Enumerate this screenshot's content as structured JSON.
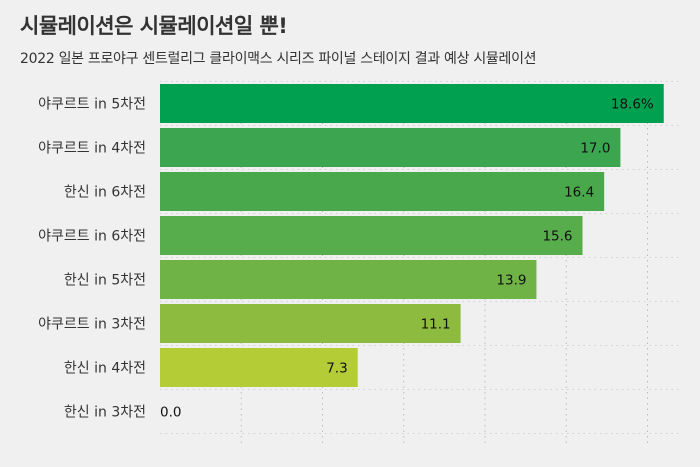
{
  "title": "시뮬레이션은 시뮬레이션일 뿐!",
  "subtitle": "2022 일본 프로야구 센트럴리그 클라이맥스 시리즈 파이널 스테이지 결과 예상 시뮬레이션",
  "chart_data": {
    "type": "bar",
    "orientation": "horizontal",
    "categories": [
      "야쿠르트 in 5차전",
      "야쿠르트 in 4차전",
      "한신 in 6차전",
      "야쿠르트 in 6차전",
      "한신 in 5차전",
      "야쿠르트 in 3차전",
      "한신 in 4차전",
      "한신 in 3차전"
    ],
    "values": [
      18.6,
      17.0,
      16.4,
      15.6,
      13.9,
      11.1,
      7.3,
      0.0
    ],
    "value_labels": [
      "18.6%",
      "17.0",
      "16.4",
      "15.6",
      "13.9",
      "11.1",
      "7.3",
      "0.0"
    ],
    "bar_colors": [
      "#00a050",
      "#3ba54f",
      "#4aa84c",
      "#57ad4b",
      "#6fb347",
      "#8dbb40",
      "#b4cc35",
      "#d4dd30"
    ],
    "xlim": [
      0,
      19.2
    ],
    "grid": true,
    "x_ticks_shown": false
  }
}
